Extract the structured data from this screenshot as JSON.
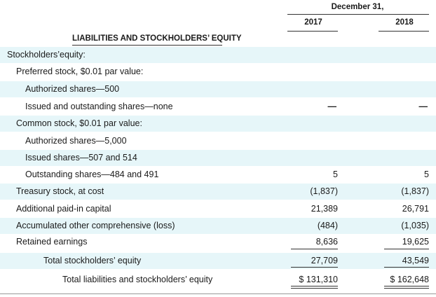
{
  "header": {
    "period_label": "December 31,",
    "year_1": "2017",
    "year_2": "2018",
    "section_title": "LIABILITIES AND STOCKHOLDERS’ EQUITY"
  },
  "rows": [
    {
      "label": "Stockholders’equity:",
      "v2017": "",
      "v2018": ""
    },
    {
      "label": "Preferred stock, $0.01 par value:",
      "v2017": "",
      "v2018": ""
    },
    {
      "label": "Authorized shares—500",
      "v2017": "",
      "v2018": ""
    },
    {
      "label": "Issued and outstanding shares—none",
      "v2017": "—",
      "v2018": "—"
    },
    {
      "label": "Common stock, $0.01 par value:",
      "v2017": "",
      "v2018": ""
    },
    {
      "label": "Authorized shares—5,000",
      "v2017": "",
      "v2018": ""
    },
    {
      "label": "Issued shares—507 and 514",
      "v2017": "",
      "v2018": ""
    },
    {
      "label": "Outstanding shares—484 and 491",
      "v2017": "5",
      "v2018": "5"
    },
    {
      "label": "Treasury stock, at cost",
      "v2017": "(1,837)",
      "v2018": "(1,837)"
    },
    {
      "label": "Additional paid-in capital",
      "v2017": "21,389",
      "v2018": "26,791"
    },
    {
      "label": "Accumulated other comprehensive (loss)",
      "v2017": "(484)",
      "v2018": "(1,035)"
    },
    {
      "label": "Retained earnings",
      "v2017": "8,636",
      "v2018": "19,625"
    },
    {
      "label": "Total stockholders’ equity",
      "v2017": "27,709",
      "v2018": "43,549"
    },
    {
      "label": "Total liabilities and stockholders’ equity",
      "v2017": "$ 131,310",
      "v2018": "$ 162,648"
    }
  ]
}
